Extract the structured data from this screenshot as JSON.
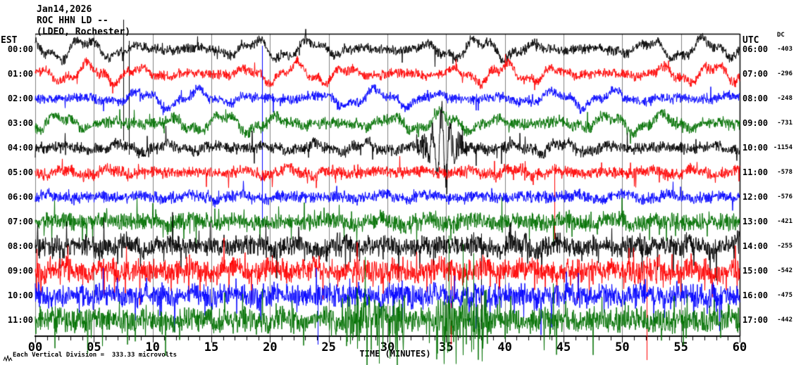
{
  "header": {
    "date": "Jan14,2026",
    "station": "ROC HHN LD --",
    "network": "(LDEO, Rochester)"
  },
  "left_axis": {
    "label": "EST"
  },
  "right_axis": {
    "label": "UTC",
    "dc_label": "DC"
  },
  "x_axis": {
    "title": "TIME (MINUTES)",
    "tick_labels": [
      "00",
      "05",
      "10",
      "15",
      "20",
      "25",
      "30",
      "35",
      "40",
      "45",
      "50",
      "55",
      "60"
    ]
  },
  "footer": {
    "scale_note": "Each Vertical Division =  333.33 microvolts"
  },
  "colors": {
    "black": "#000000",
    "red": "#ff0000",
    "blue": "#0000ff",
    "green": "#007000",
    "grid": "#808080",
    "axis": "#000000",
    "background": "#ffffff"
  },
  "chart_data": {
    "type": "line",
    "subtype": "helicorder-seismogram",
    "title": "ROC HHN LD -- (LDEO, Rochester) Jan14,2026",
    "xlabel": "TIME (MINUTES)",
    "x_range": [
      0,
      60
    ],
    "x_ticks": [
      0,
      5,
      10,
      15,
      20,
      25,
      30,
      35,
      40,
      45,
      50,
      55,
      60
    ],
    "minor_tick_minutes": 1,
    "grid": true,
    "grid_every_minutes": 5,
    "minutes_per_row": 60,
    "vertical_division_microvolts": 333.33,
    "left_timezone": "EST",
    "right_timezone": "UTC",
    "rows": [
      {
        "est": "00:00",
        "utc": "06:00",
        "dc": -403,
        "color": "#000000",
        "swell": 13,
        "period": 80,
        "noise": 5.5,
        "seed": 11,
        "spikes": [
          {
            "m": 7.5,
            "up": 42,
            "down": 130,
            "w": 1
          },
          {
            "m": 7.95,
            "up": 12,
            "down": 150,
            "w": 1
          }
        ]
      },
      {
        "est": "01:00",
        "utc": "07:00",
        "dc": -296,
        "color": "#ff0000",
        "swell": 12,
        "period": 74,
        "noise": 5.5,
        "seed": 22,
        "spikes": []
      },
      {
        "est": "02:00",
        "utc": "08:00",
        "dc": -248,
        "color": "#0000ff",
        "swell": 11,
        "period": 84,
        "noise": 5.5,
        "seed": 33,
        "spikes": [
          {
            "m": 19.3,
            "up": 75,
            "down": 178,
            "w": 1
          }
        ]
      },
      {
        "est": "03:00",
        "utc": "09:00",
        "dc": -731,
        "color": "#007000",
        "swell": 12,
        "period": 78,
        "noise": 6.5,
        "seed": 44,
        "spikes": []
      },
      {
        "est": "04:00",
        "utc": "10:00",
        "dc": -1154,
        "color": "#000000",
        "swell": 6,
        "period": 70,
        "noise": 6.5,
        "seed": 55,
        "spikes": [
          {
            "m": 34.6,
            "up": 52,
            "down": 28,
            "w": 7
          }
        ]
      },
      {
        "est": "05:00",
        "utc": "11:00",
        "dc": -578,
        "color": "#ff0000",
        "swell": 5,
        "period": 64,
        "noise": 6.5,
        "seed": 66,
        "spikes": [
          {
            "m": 44.2,
            "up": 12,
            "down": 95,
            "w": 1
          }
        ]
      },
      {
        "est": "06:00",
        "utc": "12:00",
        "dc": -576,
        "color": "#0000ff",
        "swell": 4,
        "period": 68,
        "noise": 6.5,
        "seed": 77,
        "spikes": []
      },
      {
        "est": "07:00",
        "utc": "13:00",
        "dc": -421,
        "color": "#007000",
        "swell": 5,
        "period": 66,
        "noise": 9.5,
        "seed": 88,
        "spikes": []
      },
      {
        "est": "08:00",
        "utc": "14:00",
        "dc": -255,
        "color": "#000000",
        "swell": 6,
        "period": 62,
        "noise": 12,
        "seed": 99,
        "spikes": [
          {
            "m": 38.0,
            "up": 18,
            "down": 118,
            "w": 1
          }
        ]
      },
      {
        "est": "09:00",
        "utc": "15:00",
        "dc": -542,
        "color": "#ff0000",
        "swell": 5,
        "period": 60,
        "noise": 13,
        "seed": 110,
        "spikes": [
          {
            "m": 35.4,
            "up": 15,
            "down": 105,
            "w": 1
          },
          {
            "m": 52.1,
            "up": 20,
            "down": 127,
            "w": 1
          }
        ]
      },
      {
        "est": "10:00",
        "utc": "16:00",
        "dc": -475,
        "color": "#0000ff",
        "swell": 5,
        "period": 58,
        "noise": 13,
        "seed": 121,
        "spikes": [
          {
            "m": 24.05,
            "up": 15,
            "down": 70,
            "w": 1
          }
        ]
      },
      {
        "est": "11:00",
        "utc": "17:00",
        "dc": -442,
        "color": "#007000",
        "swell": 5,
        "period": 64,
        "noise": 14,
        "seed": 132,
        "spikes": [
          {
            "m": 29.3,
            "up": 25,
            "down": 62,
            "w": 2
          },
          {
            "m": 30.2,
            "up": 20,
            "down": 55,
            "w": 1
          },
          {
            "m": 35.2,
            "up": 120,
            "down": 45,
            "w": 2
          },
          {
            "m": 36.4,
            "up": 108,
            "down": 50,
            "w": 1
          },
          {
            "m": 37.3,
            "up": 95,
            "down": 42,
            "w": 1
          }
        ],
        "bursts": [
          {
            "m0": 26.5,
            "m1": 31.5,
            "mult": 2.1
          },
          {
            "m0": 34.0,
            "m1": 38.5,
            "mult": 1.9
          }
        ]
      }
    ]
  }
}
